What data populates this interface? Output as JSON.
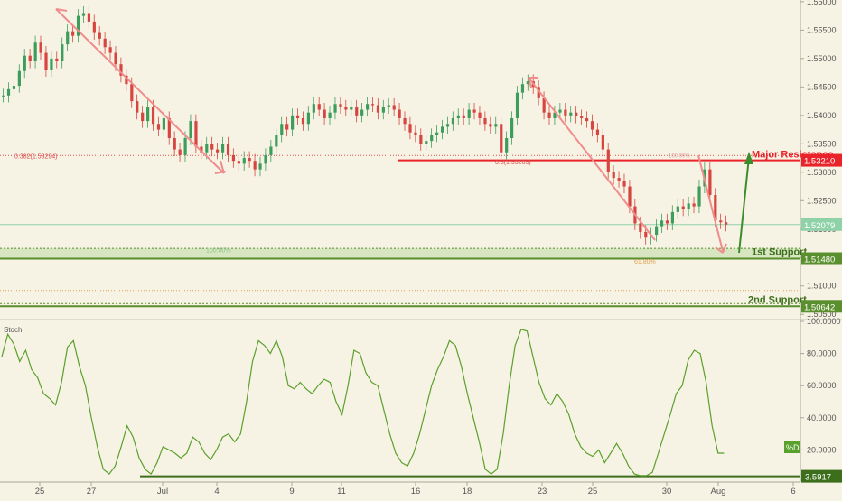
{
  "chart_data": [
    {
      "type": "candlestick",
      "panel": "price",
      "ylim": [
        1.5044,
        1.5603
      ],
      "y_ticks": [
        "1.56000",
        "1.55500",
        "1.55000",
        "1.54500",
        "1.54000",
        "1.53500",
        "1.53000",
        "1.52500",
        "1.52000",
        "1.51500",
        "1.51000",
        "1.50500"
      ],
      "x_ticks": [
        "25",
        "27",
        "Jul",
        "4",
        "9",
        "11",
        "16",
        "18",
        "23",
        "25",
        "30",
        "Aug",
        "6"
      ],
      "current_price": {
        "value": 1.52079,
        "label": "1.52079",
        "color": "#8fd2a8"
      },
      "levels": [
        {
          "value": 1.5321,
          "label": "1.53210",
          "name": "Major Resistance",
          "color": "#e8232a"
        },
        {
          "value": 1.5148,
          "label": "1.51480",
          "name": "1st Support",
          "color": "#5a8f2e"
        },
        {
          "value": 1.50642,
          "label": "1.50642",
          "name": "2nd Support",
          "color": "#5a8f2e"
        }
      ],
      "fib_labels": [
        {
          "text": "0.382(1.53294)",
          "color": "#d94b4b"
        },
        {
          "text": "0.5(1.53205)",
          "color": "#d94b4b"
        },
        {
          "text": "100.00%",
          "color": "#8cc48c"
        },
        {
          "text": "61.80%",
          "color": "#e0a050"
        },
        {
          "text": "100.00%",
          "color": "#d9a0a0"
        }
      ],
      "support_zone": [
        1.5148,
        1.5166
      ],
      "close_series": [
        [
          0,
          1.5435
        ],
        [
          1,
          1.5446
        ],
        [
          2,
          1.5452
        ],
        [
          3,
          1.5478
        ],
        [
          4,
          1.5505
        ],
        [
          5,
          1.5495
        ],
        [
          6,
          1.5528
        ],
        [
          7,
          1.551
        ],
        [
          8,
          1.548
        ],
        [
          9,
          1.55
        ],
        [
          10,
          1.5495
        ],
        [
          11,
          1.5525
        ],
        [
          12,
          1.5548
        ],
        [
          13,
          1.554
        ],
        [
          14,
          1.5575
        ],
        [
          15,
          1.558
        ],
        [
          16,
          1.5565
        ],
        [
          17,
          1.5545
        ],
        [
          18,
          1.5535
        ],
        [
          19,
          1.552
        ],
        [
          20,
          1.551
        ],
        [
          21,
          1.549
        ],
        [
          22,
          1.547
        ],
        [
          23,
          1.5455
        ],
        [
          24,
          1.5425
        ],
        [
          25,
          1.5405
        ],
        [
          26,
          1.539
        ],
        [
          27,
          1.5415
        ],
        [
          28,
          1.5385
        ],
        [
          29,
          1.5375
        ],
        [
          30,
          1.5395
        ],
        [
          31,
          1.536
        ],
        [
          32,
          1.534
        ],
        [
          33,
          1.533
        ],
        [
          34,
          1.536
        ],
        [
          35,
          1.539
        ],
        [
          36,
          1.5345
        ],
        [
          37,
          1.5335
        ],
        [
          38,
          1.535
        ],
        [
          39,
          1.534
        ],
        [
          40,
          1.5335
        ],
        [
          41,
          1.535
        ],
        [
          42,
          1.533
        ],
        [
          43,
          1.532
        ],
        [
          44,
          1.5315
        ],
        [
          45,
          1.5325
        ],
        [
          46,
          1.532
        ],
        [
          47,
          1.5305
        ],
        [
          48,
          1.5315
        ],
        [
          49,
          1.533
        ],
        [
          50,
          1.5345
        ],
        [
          51,
          1.5365
        ],
        [
          52,
          1.5385
        ],
        [
          53,
          1.5375
        ],
        [
          54,
          1.54
        ],
        [
          55,
          1.5395
        ],
        [
          56,
          1.5385
        ],
        [
          57,
          1.5405
        ],
        [
          58,
          1.542
        ],
        [
          59,
          1.541
        ],
        [
          60,
          1.5395
        ],
        [
          61,
          1.5405
        ],
        [
          62,
          1.542
        ],
        [
          63,
          1.5415
        ],
        [
          64,
          1.541
        ],
        [
          65,
          1.5415
        ],
        [
          66,
          1.54
        ],
        [
          67,
          1.541
        ],
        [
          68,
          1.542
        ],
        [
          69,
          1.5418
        ],
        [
          70,
          1.5405
        ],
        [
          71,
          1.5415
        ],
        [
          72,
          1.5418
        ],
        [
          73,
          1.541
        ],
        [
          74,
          1.5395
        ],
        [
          75,
          1.5385
        ],
        [
          76,
          1.537
        ],
        [
          77,
          1.5365
        ],
        [
          78,
          1.535
        ],
        [
          79,
          1.5355
        ],
        [
          80,
          1.5365
        ],
        [
          81,
          1.537
        ],
        [
          82,
          1.538
        ],
        [
          83,
          1.5385
        ],
        [
          84,
          1.5395
        ],
        [
          85,
          1.54
        ],
        [
          86,
          1.5395
        ],
        [
          87,
          1.541
        ],
        [
          88,
          1.5405
        ],
        [
          89,
          1.5395
        ],
        [
          90,
          1.5385
        ],
        [
          91,
          1.538
        ],
        [
          92,
          1.5385
        ],
        [
          93,
          1.5335
        ],
        [
          94,
          1.536
        ],
        [
          95,
          1.5395
        ],
        [
          96,
          1.544
        ],
        [
          97,
          1.5455
        ],
        [
          98,
          1.546
        ],
        [
          99,
          1.545
        ],
        [
          100,
          1.543
        ],
        [
          101,
          1.5405
        ],
        [
          102,
          1.5395
        ],
        [
          103,
          1.5405
        ],
        [
          104,
          1.541
        ],
        [
          105,
          1.54
        ],
        [
          106,
          1.5405
        ],
        [
          107,
          1.5398
        ],
        [
          108,
          1.5395
        ],
        [
          109,
          1.539
        ],
        [
          110,
          1.5375
        ],
        [
          111,
          1.5365
        ],
        [
          112,
          1.534
        ],
        [
          113,
          1.53
        ],
        [
          114,
          1.529
        ],
        [
          115,
          1.5285
        ],
        [
          116,
          1.5275
        ],
        [
          117,
          1.524
        ],
        [
          118,
          1.521
        ],
        [
          119,
          1.5195
        ],
        [
          120,
          1.5185
        ],
        [
          121,
          1.519
        ],
        [
          122,
          1.5205
        ],
        [
          123,
          1.5215
        ],
        [
          124,
          1.521
        ],
        [
          125,
          1.523
        ],
        [
          126,
          1.524
        ],
        [
          127,
          1.5235
        ],
        [
          128,
          1.5245
        ],
        [
          129,
          1.524
        ],
        [
          130,
          1.5275
        ],
        [
          131,
          1.5305
        ],
        [
          132,
          1.526
        ],
        [
          133,
          1.5215
        ],
        [
          134,
          1.5212
        ],
        [
          135,
          1.5208
        ]
      ]
    },
    {
      "type": "line",
      "panel": "stochastic",
      "title": "Stoch",
      "series_label": "%D",
      "ylim": [
        0,
        100
      ],
      "y_ticks": [
        "100.0000",
        "80.0000",
        "60.0000",
        "40.0000",
        "20.0000"
      ],
      "current_value": {
        "value": 3.5917,
        "label": "3.5917"
      },
      "baseline": 3.5917,
      "series": [
        {
          "name": "%D",
          "color": "#5aa02c",
          "points": [
            [
              0,
              78
            ],
            [
              1,
              92
            ],
            [
              2,
              86
            ],
            [
              3,
              75
            ],
            [
              4,
              82
            ],
            [
              5,
              70
            ],
            [
              6,
              65
            ],
            [
              7,
              55
            ],
            [
              8,
              52
            ],
            [
              9,
              48
            ],
            [
              10,
              62
            ],
            [
              11,
              84
            ],
            [
              12,
              88
            ],
            [
              13,
              72
            ],
            [
              14,
              60
            ],
            [
              15,
              40
            ],
            [
              16,
              22
            ],
            [
              17,
              8
            ],
            [
              18,
              5
            ],
            [
              19,
              10
            ],
            [
              20,
              22
            ],
            [
              21,
              35
            ],
            [
              22,
              28
            ],
            [
              23,
              15
            ],
            [
              24,
              8
            ],
            [
              25,
              5
            ],
            [
              26,
              12
            ],
            [
              27,
              22
            ],
            [
              28,
              20
            ],
            [
              29,
              18
            ],
            [
              30,
              15
            ],
            [
              31,
              18
            ],
            [
              32,
              28
            ],
            [
              33,
              25
            ],
            [
              34,
              18
            ],
            [
              35,
              14
            ],
            [
              36,
              20
            ],
            [
              37,
              28
            ],
            [
              38,
              30
            ],
            [
              39,
              25
            ],
            [
              40,
              30
            ],
            [
              41,
              50
            ],
            [
              42,
              75
            ],
            [
              43,
              88
            ],
            [
              44,
              85
            ],
            [
              45,
              80
            ],
            [
              46,
              88
            ],
            [
              47,
              78
            ],
            [
              48,
              60
            ],
            [
              49,
              58
            ],
            [
              50,
              62
            ],
            [
              51,
              58
            ],
            [
              52,
              55
            ],
            [
              53,
              60
            ],
            [
              54,
              64
            ],
            [
              55,
              62
            ],
            [
              56,
              50
            ],
            [
              57,
              42
            ],
            [
              58,
              60
            ],
            [
              59,
              82
            ],
            [
              60,
              80
            ],
            [
              61,
              68
            ],
            [
              62,
              62
            ],
            [
              63,
              60
            ],
            [
              64,
              45
            ],
            [
              65,
              30
            ],
            [
              66,
              18
            ],
            [
              67,
              12
            ],
            [
              68,
              10
            ],
            [
              69,
              18
            ],
            [
              70,
              30
            ],
            [
              71,
              45
            ],
            [
              72,
              60
            ],
            [
              73,
              70
            ],
            [
              74,
              78
            ],
            [
              75,
              88
            ],
            [
              76,
              85
            ],
            [
              77,
              72
            ],
            [
              78,
              55
            ],
            [
              79,
              40
            ],
            [
              80,
              25
            ],
            [
              81,
              8
            ],
            [
              82,
              5
            ],
            [
              83,
              8
            ],
            [
              84,
              30
            ],
            [
              85,
              60
            ],
            [
              86,
              85
            ],
            [
              87,
              95
            ],
            [
              88,
              94
            ],
            [
              89,
              78
            ],
            [
              90,
              62
            ],
            [
              91,
              52
            ],
            [
              92,
              48
            ],
            [
              93,
              55
            ],
            [
              94,
              50
            ],
            [
              95,
              42
            ],
            [
              96,
              30
            ],
            [
              97,
              22
            ],
            [
              98,
              18
            ],
            [
              99,
              16
            ],
            [
              100,
              20
            ],
            [
              101,
              12
            ],
            [
              102,
              18
            ],
            [
              103,
              24
            ],
            [
              104,
              18
            ],
            [
              105,
              10
            ],
            [
              106,
              5
            ],
            [
              107,
              4
            ],
            [
              108,
              4
            ],
            [
              109,
              6
            ],
            [
              110,
              18
            ],
            [
              111,
              30
            ],
            [
              112,
              42
            ],
            [
              113,
              55
            ],
            [
              114,
              60
            ],
            [
              115,
              76
            ],
            [
              116,
              82
            ],
            [
              117,
              80
            ],
            [
              118,
              62
            ],
            [
              119,
              35
            ],
            [
              120,
              18
            ],
            [
              121,
              18
            ]
          ]
        }
      ]
    }
  ]
}
